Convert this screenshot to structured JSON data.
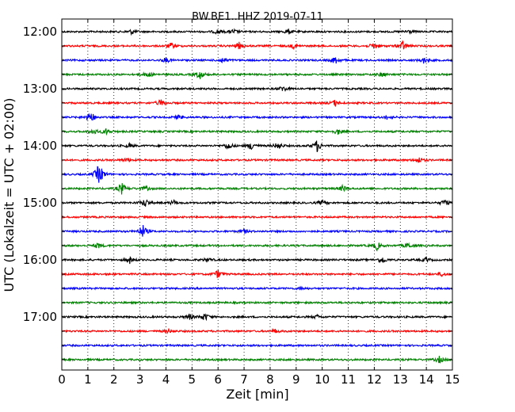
{
  "chart_data": {
    "type": "line",
    "title": "BW.BE1..HHZ 2019-07-11",
    "xlabel": "Zeit  [min]",
    "ylabel": "UTC (Lokalzeit = UTC + 02:00)",
    "xlim": [
      0,
      15
    ],
    "x_ticks": [
      "0",
      "1",
      "2",
      "3",
      "4",
      "5",
      "6",
      "7",
      "8",
      "9",
      "10",
      "11",
      "12",
      "13",
      "14",
      "15"
    ],
    "y_tick_labels": [
      "12:00",
      "13:00",
      "14:00",
      "15:00",
      "16:00",
      "17:00"
    ],
    "grid": "vertical dotted",
    "trace_interval_minutes": 15,
    "trace_colors": [
      "#000000",
      "#ff0000",
      "#0000ff",
      "#008000"
    ],
    "series": [
      {
        "start": "12:00",
        "color": "#000000",
        "events": [
          [
            2.7,
            0.35
          ],
          [
            6.0,
            0.35
          ],
          [
            6.6,
            0.3
          ],
          [
            8.7,
            0.35
          ],
          [
            13.3,
            0.3
          ]
        ]
      },
      {
        "start": "12:15",
        "color": "#ff0000",
        "events": [
          [
            4.2,
            0.4
          ],
          [
            6.8,
            0.5
          ],
          [
            8.9,
            0.3
          ],
          [
            12.0,
            0.5
          ],
          [
            13.1,
            0.7
          ]
        ]
      },
      {
        "start": "12:30",
        "color": "#0000ff",
        "events": [
          [
            4.0,
            0.35
          ],
          [
            6.2,
            0.45
          ],
          [
            10.5,
            0.55
          ],
          [
            13.9,
            0.4
          ]
        ]
      },
      {
        "start": "12:45",
        "color": "#008000",
        "events": [
          [
            3.3,
            0.4
          ],
          [
            5.3,
            0.65
          ],
          [
            12.3,
            0.3
          ]
        ]
      },
      {
        "start": "13:00",
        "color": "#000000",
        "events": [
          [
            8.5,
            0.4
          ]
        ]
      },
      {
        "start": "13:15",
        "color": "#ff0000",
        "events": [
          [
            3.8,
            0.5
          ],
          [
            10.5,
            0.45
          ]
        ]
      },
      {
        "start": "13:30",
        "color": "#0000ff",
        "events": [
          [
            1.1,
            0.95
          ],
          [
            4.5,
            0.3
          ],
          [
            12.5,
            0.3
          ]
        ]
      },
      {
        "start": "13:45",
        "color": "#008000",
        "events": [
          [
            1.2,
            0.4
          ],
          [
            1.7,
            0.4
          ],
          [
            10.6,
            0.4
          ]
        ]
      },
      {
        "start": "14:00",
        "color": "#000000",
        "events": [
          [
            2.6,
            0.3
          ],
          [
            6.4,
            0.5
          ],
          [
            7.3,
            0.6
          ],
          [
            8.3,
            0.5
          ],
          [
            9.8,
            0.85
          ]
        ]
      },
      {
        "start": "14:15",
        "color": "#ff0000",
        "events": [
          [
            2.5,
            0.3
          ],
          [
            13.7,
            0.45
          ]
        ]
      },
      {
        "start": "14:30",
        "color": "#0000ff",
        "events": [
          [
            1.4,
            1.0
          ],
          [
            1.5,
            0.6
          ]
        ]
      },
      {
        "start": "14:45",
        "color": "#008000",
        "events": [
          [
            2.3,
            0.8
          ],
          [
            3.2,
            0.35
          ],
          [
            10.8,
            0.45
          ]
        ]
      },
      {
        "start": "15:00",
        "color": "#000000",
        "events": [
          [
            3.2,
            0.6
          ],
          [
            4.3,
            0.35
          ],
          [
            10.0,
            0.3
          ],
          [
            14.7,
            0.45
          ]
        ]
      },
      {
        "start": "15:15",
        "color": "#ff0000",
        "events": []
      },
      {
        "start": "15:30",
        "color": "#0000ff",
        "events": [
          [
            3.1,
            1.0
          ],
          [
            7.0,
            0.3
          ]
        ]
      },
      {
        "start": "15:45",
        "color": "#008000",
        "events": [
          [
            1.4,
            0.4
          ],
          [
            12.1,
            0.6
          ],
          [
            13.3,
            0.4
          ]
        ]
      },
      {
        "start": "16:00",
        "color": "#000000",
        "events": [
          [
            2.6,
            0.5
          ],
          [
            5.6,
            0.3
          ],
          [
            12.3,
            0.5
          ],
          [
            14.0,
            0.3
          ]
        ]
      },
      {
        "start": "16:15",
        "color": "#ff0000",
        "events": [
          [
            6.0,
            0.6
          ],
          [
            14.6,
            0.3
          ]
        ]
      },
      {
        "start": "16:30",
        "color": "#0000ff",
        "events": [
          [
            9.2,
            0.2
          ]
        ]
      },
      {
        "start": "16:45",
        "color": "#008000",
        "events": []
      },
      {
        "start": "17:00",
        "color": "#000000",
        "events": [
          [
            4.9,
            0.4
          ],
          [
            5.5,
            0.55
          ],
          [
            9.8,
            0.25
          ]
        ]
      },
      {
        "start": "17:15",
        "color": "#ff0000",
        "events": [
          [
            4.1,
            0.3
          ],
          [
            8.2,
            0.25
          ]
        ]
      },
      {
        "start": "17:30",
        "color": "#0000ff",
        "events": []
      },
      {
        "start": "17:45",
        "color": "#008000",
        "events": [
          [
            14.5,
            0.45
          ]
        ]
      }
    ]
  }
}
